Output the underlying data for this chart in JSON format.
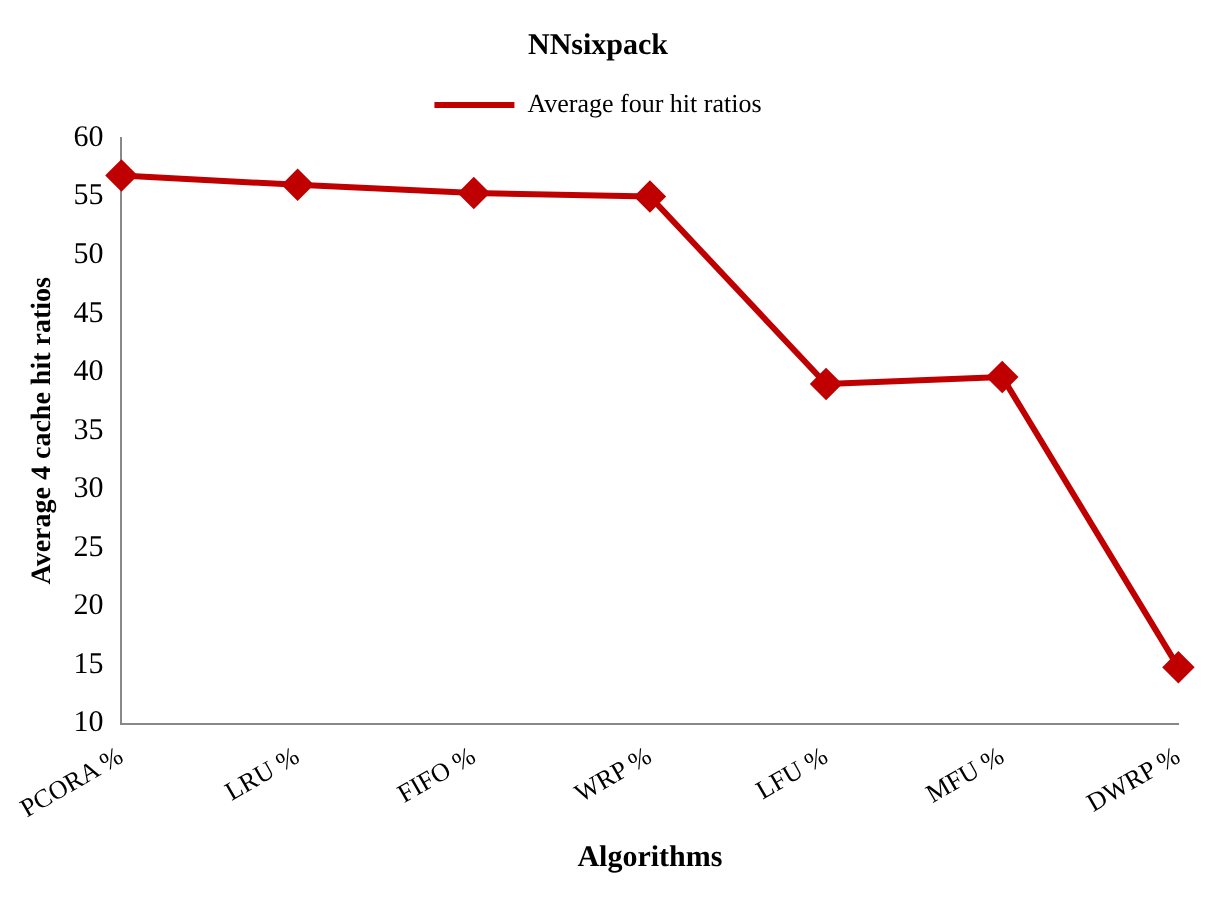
{
  "chart_data": {
    "type": "line",
    "title": "NNsixpack",
    "xlabel": "Algorithms",
    "ylabel": "Average 4 cache hit ratios",
    "categories": [
      "PCORA %",
      "LRU %",
      "FIFO %",
      "WRP %",
      "LFU %",
      "MFU %",
      "DWRP %"
    ],
    "series": [
      {
        "name": "Average four hit ratios",
        "color": "#c00000",
        "values": [
          56.8,
          56.0,
          55.3,
          55.0,
          39.0,
          39.6,
          14.8
        ]
      }
    ],
    "ylim": [
      10,
      60
    ],
    "yticks": [
      10,
      15,
      20,
      25,
      30,
      35,
      40,
      45,
      50,
      55,
      60
    ],
    "grid": false,
    "legend": "top",
    "marker": "diamond",
    "line_style": "solid"
  }
}
